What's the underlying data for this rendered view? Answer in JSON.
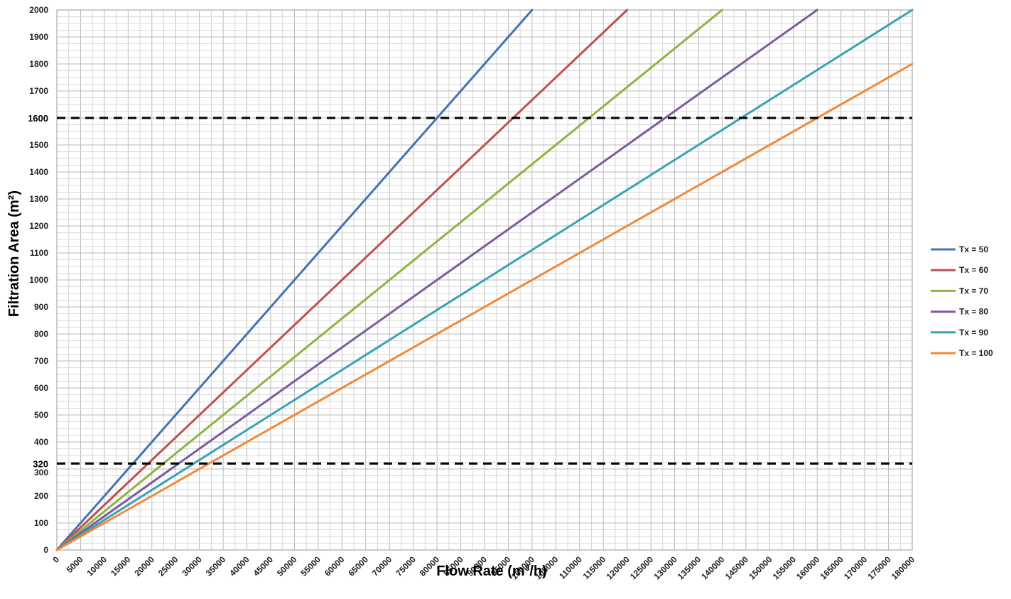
{
  "chart_data": {
    "type": "line",
    "xlabel": "Flow Rate (m³/h)",
    "ylabel": "Filtration Area (m²)",
    "xlim": [
      0,
      180000
    ],
    "ylim": [
      0,
      2000
    ],
    "x_ticks": [
      "0",
      "5000",
      "10000",
      "15000",
      "20000",
      "25000",
      "30000",
      "35000",
      "40000",
      "45000",
      "50000",
      "55000",
      "60000",
      "65000",
      "70000",
      "75000",
      "80000",
      "85000",
      "90000",
      "95000",
      "100000",
      "105000",
      "110000",
      "115000",
      "120000",
      "125000",
      "130000",
      "135000",
      "140000",
      "145000",
      "150000",
      "155000",
      "160000",
      "165000",
      "170000",
      "175000",
      "180000"
    ],
    "y_ticks": [
      "0",
      "100",
      "200",
      "300",
      "400",
      "500",
      "600",
      "700",
      "800",
      "900",
      "1000",
      "1100",
      "1200",
      "1300",
      "1400",
      "1500",
      "1600",
      "1700",
      "1800",
      "1900",
      "2000"
    ],
    "grid": true,
    "legend_position": "right",
    "series": [
      {
        "name": "Tx = 50",
        "color": "#4472b4",
        "x": [
          0,
          100000
        ],
        "y": [
          0,
          2000
        ]
      },
      {
        "name": "Tx = 60",
        "color": "#c0504d",
        "x": [
          0,
          120000
        ],
        "y": [
          0,
          2000
        ]
      },
      {
        "name": "Tx = 70",
        "color": "#8db442",
        "x": [
          0,
          140000
        ],
        "y": [
          0,
          2000
        ]
      },
      {
        "name": "Tx = 80",
        "color": "#7d5aa0",
        "x": [
          0,
          160000
        ],
        "y": [
          0,
          2000
        ]
      },
      {
        "name": "Tx = 90",
        "color": "#3ba1b7",
        "x": [
          0,
          180000
        ],
        "y": [
          0,
          2000
        ]
      },
      {
        "name": "Tx = 100",
        "color": "#f08a3a",
        "x": [
          0,
          180000
        ],
        "y": [
          0,
          1800
        ]
      }
    ],
    "reference_lines": [
      {
        "label": "1600",
        "y": 1600
      },
      {
        "label": "320",
        "y": 320
      }
    ]
  }
}
